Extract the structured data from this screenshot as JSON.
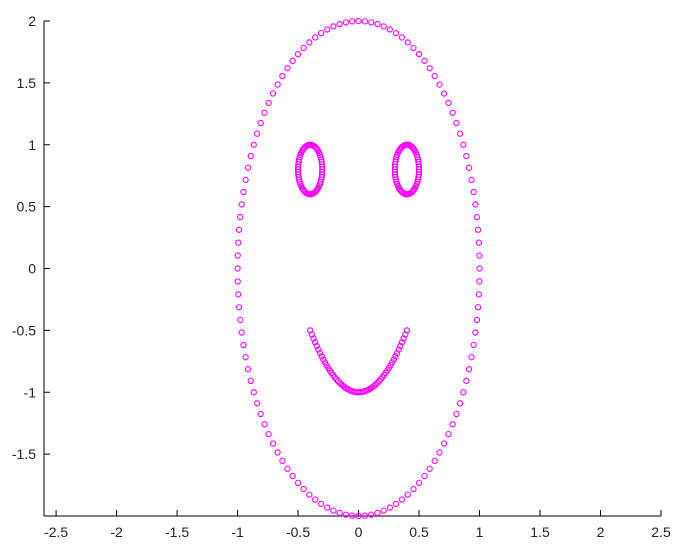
{
  "chart_data": {
    "type": "scatter",
    "title": "",
    "xlabel": "",
    "ylabel": "",
    "xlim": [
      -2.6,
      2.5
    ],
    "ylim": [
      -2.0,
      2.0
    ],
    "xticks": [
      -2.5,
      -2,
      -1.5,
      -1,
      -0.5,
      0,
      0.5,
      1,
      1.5,
      2,
      2.5
    ],
    "xtick_labels": [
      "-2.5",
      "-2",
      "-1.5",
      "-1",
      "-0.5",
      "0",
      "0.5",
      "1",
      "1.5",
      "2",
      "2.5"
    ],
    "yticks": [
      -1.5,
      -1,
      -0.5,
      0,
      0.5,
      1,
      1.5,
      2
    ],
    "ytick_labels": [
      "-1.5",
      "-1",
      "-0.5",
      "0",
      "0.5",
      "1",
      "1.5",
      "2"
    ],
    "grid": false,
    "marker": "circle-open",
    "marker_color": "#ff00ff",
    "series": [
      {
        "parametric": "ellipse",
        "cx": 0,
        "cy": 0,
        "rx": 1.0,
        "ry": 2.0,
        "t_start": 0,
        "t_end": 6.2832,
        "points": 120
      },
      {
        "parametric": "ellipse",
        "cx": -0.4,
        "cy": 0.8,
        "rx": 0.1,
        "ry": 0.2,
        "t_start": 0,
        "t_end": 6.2832,
        "points": 60
      },
      {
        "parametric": "ellipse",
        "cx": 0.4,
        "cy": 0.8,
        "rx": 0.1,
        "ry": 0.2,
        "t_start": 0,
        "t_end": 6.2832,
        "points": 60
      },
      {
        "parametric": "parabola",
        "formula": "y = 3.125*x^2 - 1",
        "a": 3.125,
        "c": -1.0,
        "x_start": -0.4,
        "x_end": 0.4,
        "points": 60
      }
    ]
  }
}
